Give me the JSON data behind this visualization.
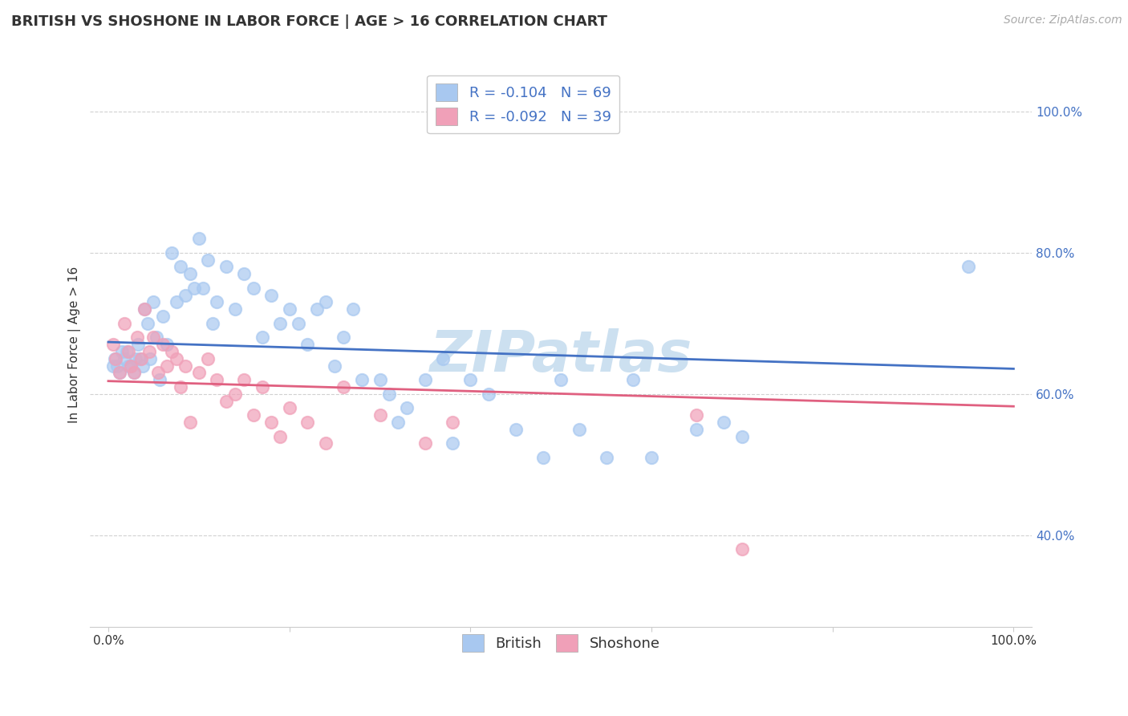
{
  "title": "BRITISH VS SHOSHONE IN LABOR FORCE | AGE > 16 CORRELATION CHART",
  "source_text": "Source: ZipAtlas.com",
  "ylabel": "In Labor Force | Age > 16",
  "xlim": [
    -0.02,
    1.02
  ],
  "ylim": [
    0.27,
    1.07
  ],
  "x_ticks": [
    0.0,
    1.0
  ],
  "x_tick_labels": [
    "0.0%",
    "100.0%"
  ],
  "y_ticks": [
    0.4,
    0.6,
    0.8,
    1.0
  ],
  "y_tick_labels": [
    "40.0%",
    "60.0%",
    "80.0%",
    "100.0%"
  ],
  "british_color": "#a8c8f0",
  "shoshone_color": "#f0a0b8",
  "british_line_color": "#4472c4",
  "shoshone_line_color": "#e06080",
  "legend_british_label": "R = -0.104   N = 69",
  "legend_shoshone_label": "R = -0.092   N = 39",
  "watermark": "ZIPatlas",
  "british_R": -0.104,
  "shoshone_R": -0.092,
  "british_x": [
    0.005,
    0.007,
    0.01,
    0.012,
    0.015,
    0.018,
    0.02,
    0.022,
    0.025,
    0.028,
    0.03,
    0.033,
    0.035,
    0.038,
    0.04,
    0.043,
    0.046,
    0.05,
    0.053,
    0.057,
    0.06,
    0.065,
    0.07,
    0.075,
    0.08,
    0.085,
    0.09,
    0.095,
    0.1,
    0.105,
    0.11,
    0.115,
    0.12,
    0.13,
    0.14,
    0.15,
    0.16,
    0.17,
    0.18,
    0.19,
    0.2,
    0.21,
    0.22,
    0.23,
    0.24,
    0.25,
    0.26,
    0.27,
    0.28,
    0.3,
    0.31,
    0.32,
    0.33,
    0.35,
    0.37,
    0.38,
    0.4,
    0.42,
    0.45,
    0.48,
    0.5,
    0.52,
    0.55,
    0.58,
    0.6,
    0.65,
    0.68,
    0.7,
    0.95
  ],
  "british_y": [
    0.64,
    0.65,
    0.64,
    0.63,
    0.66,
    0.65,
    0.66,
    0.64,
    0.64,
    0.63,
    0.65,
    0.67,
    0.65,
    0.64,
    0.72,
    0.7,
    0.65,
    0.73,
    0.68,
    0.62,
    0.71,
    0.67,
    0.8,
    0.73,
    0.78,
    0.74,
    0.77,
    0.75,
    0.82,
    0.75,
    0.79,
    0.7,
    0.73,
    0.78,
    0.72,
    0.77,
    0.75,
    0.68,
    0.74,
    0.7,
    0.72,
    0.7,
    0.67,
    0.72,
    0.73,
    0.64,
    0.68,
    0.72,
    0.62,
    0.62,
    0.6,
    0.56,
    0.58,
    0.62,
    0.65,
    0.53,
    0.62,
    0.6,
    0.55,
    0.51,
    0.62,
    0.55,
    0.51,
    0.62,
    0.51,
    0.55,
    0.56,
    0.54,
    0.78
  ],
  "shoshone_x": [
    0.005,
    0.008,
    0.012,
    0.018,
    0.022,
    0.025,
    0.028,
    0.032,
    0.036,
    0.04,
    0.045,
    0.05,
    0.055,
    0.06,
    0.065,
    0.07,
    0.075,
    0.08,
    0.085,
    0.09,
    0.1,
    0.11,
    0.12,
    0.13,
    0.14,
    0.15,
    0.16,
    0.17,
    0.18,
    0.19,
    0.2,
    0.22,
    0.24,
    0.26,
    0.3,
    0.35,
    0.38,
    0.65,
    0.7
  ],
  "shoshone_y": [
    0.67,
    0.65,
    0.63,
    0.7,
    0.66,
    0.64,
    0.63,
    0.68,
    0.65,
    0.72,
    0.66,
    0.68,
    0.63,
    0.67,
    0.64,
    0.66,
    0.65,
    0.61,
    0.64,
    0.56,
    0.63,
    0.65,
    0.62,
    0.59,
    0.6,
    0.62,
    0.57,
    0.61,
    0.56,
    0.54,
    0.58,
    0.56,
    0.53,
    0.61,
    0.57,
    0.53,
    0.56,
    0.57,
    0.38
  ],
  "grid_color": "#cccccc",
  "background_color": "#ffffff",
  "title_fontsize": 13,
  "axis_label_fontsize": 11,
  "tick_fontsize": 11,
  "legend_fontsize": 13,
  "watermark_fontsize": 52,
  "watermark_color": "#cce0f0",
  "source_fontsize": 10
}
